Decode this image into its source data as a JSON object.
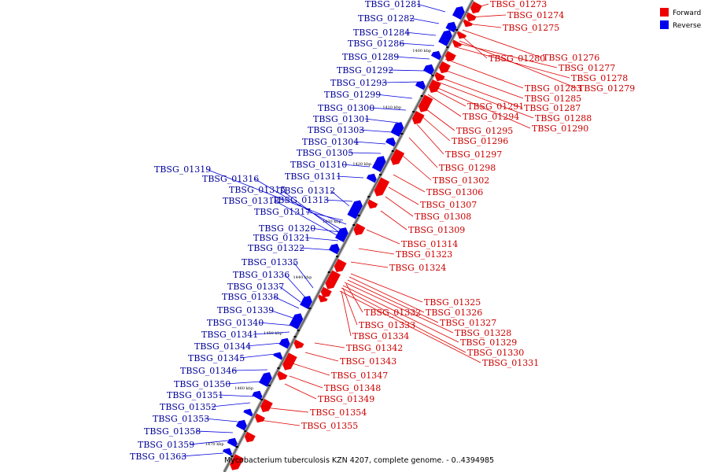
{
  "caption": "Mycobacterium tuberculosis KZN 4207, complete genome. - 0..4394985",
  "legend": [
    {
      "label": "Forward",
      "color": "#ee0000"
    },
    {
      "label": "Reverse",
      "color": "#0000ee"
    }
  ],
  "axis_ticks": [
    "1400 kbp",
    "1410 kbp",
    "1420 kbp",
    "1430 kbp",
    "1440 kbp",
    "1450 kbp",
    "1460 kbp",
    "1470 kbp"
  ],
  "forward_genes": [
    "TBSG_01273",
    "TBSG_01274",
    "TBSG_01275",
    "TBSG_01280",
    "TBSG_01276",
    "TBSG_01277",
    "TBSG_01278",
    "TBSG_01283",
    "TBSG_01279",
    "TBSG_01285",
    "TBSG_01287",
    "TBSG_01291",
    "TBSG_01288",
    "TBSG_01294",
    "TBSG_01290",
    "TBSG_01295",
    "TBSG_01296",
    "TBSG_01297",
    "TBSG_01298",
    "TBSG_01302",
    "TBSG_01306",
    "TBSG_01307",
    "TBSG_01308",
    "TBSG_01309",
    "TBSG_01314",
    "TBSG_01323",
    "TBSG_01324",
    "TBSG_01325",
    "TBSG_01326",
    "TBSG_01332",
    "TBSG_01327",
    "TBSG_01333",
    "TBSG_01328",
    "TBSG_01334",
    "TBSG_01329",
    "TBSG_01330",
    "TBSG_01331",
    "TBSG_01342",
    "TBSG_01343",
    "TBSG_01347",
    "TBSG_01348",
    "TBSG_01349",
    "TBSG_01354",
    "TBSG_01355"
  ],
  "reverse_genes": [
    "TBSG_01281",
    "TBSG_01282",
    "TBSG_01284",
    "TBSG_01286",
    "TBSG_01289",
    "TBSG_01292",
    "TBSG_01293",
    "TBSG_01299",
    "TBSG_01300",
    "TBSG_01301",
    "TBSG_01303",
    "TBSG_01304",
    "TBSG_01305",
    "TBSG_01310",
    "TBSG_01319",
    "TBSG_01311",
    "TBSG_01316",
    "TBSG_01315",
    "TBSG_01312",
    "TBSG_01318",
    "TBSG_01313",
    "TBSG_01317",
    "TBSG_01320",
    "TBSG_01321",
    "TBSG_01322",
    "TBSG_01335",
    "TBSG_01336",
    "TBSG_01337",
    "TBSG_01338",
    "TBSG_01339",
    "TBSG_01340",
    "TBSG_01341",
    "TBSG_01344",
    "TBSG_01345",
    "TBSG_01346",
    "TBSG_01350",
    "TBSG_01351",
    "TBSG_01352",
    "TBSG_01353",
    "TBSG_01358",
    "TBSG_01359",
    "TBSG_01363"
  ]
}
